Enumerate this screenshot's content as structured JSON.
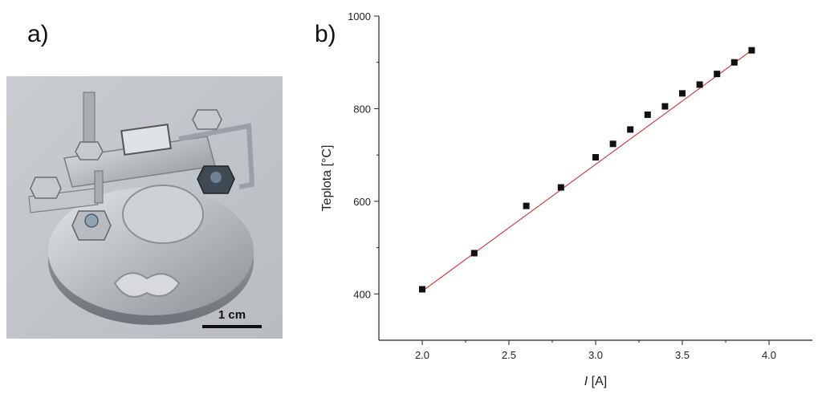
{
  "panels": {
    "a_label": "a)",
    "b_label": "b)"
  },
  "photo": {
    "scale_bar_label": "1 cm"
  },
  "chart_data": {
    "type": "scatter",
    "title": "",
    "xlabel_italic": "I",
    "xlabel_unit": " [A]",
    "ylabel": "Teplota [°C]",
    "xlim": [
      1.75,
      4.25
    ],
    "ylim": [
      300,
      1000
    ],
    "x_ticks": [
      2.0,
      2.5,
      3.0,
      3.5,
      4.0
    ],
    "x_tick_labels": [
      "2.0",
      "2.5",
      "3.0",
      "3.5",
      "4.0"
    ],
    "y_ticks": [
      400,
      600,
      800,
      1000
    ],
    "y_tick_labels": [
      "400",
      "600",
      "800",
      "1000"
    ],
    "series": [
      {
        "x": [
          2.0,
          2.3,
          2.6,
          2.8,
          3.0,
          3.1,
          3.2,
          3.3,
          3.4,
          3.5,
          3.6,
          3.7,
          3.8,
          3.9
        ],
        "y": [
          410,
          488,
          590,
          630,
          695,
          724,
          755,
          787,
          805,
          833,
          852,
          875,
          900,
          926
        ]
      }
    ],
    "fit_line": {
      "x": [
        2.0,
        3.9
      ],
      "y": [
        406,
        926
      ],
      "color": "#d42020"
    },
    "marker_color": "#111111",
    "grid": false,
    "legend": "none"
  }
}
